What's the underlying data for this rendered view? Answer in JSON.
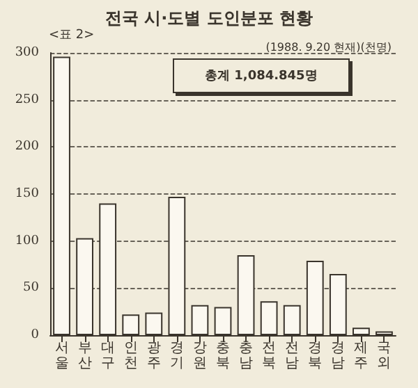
{
  "chart_data": {
    "type": "bar",
    "title": "전국 시·도별 도인분포 현황",
    "subtitle": "(1988. 9.20 현재)(천명)",
    "annotations": [
      "<표 2>",
      "총계 1,084.845명"
    ],
    "categories": [
      "서울",
      "부산",
      "대구",
      "인천",
      "광주",
      "경기",
      "강원",
      "충북",
      "충남",
      "전북",
      "전남",
      "경북",
      "경남",
      "제주",
      "국외"
    ],
    "values": [
      296,
      103,
      140,
      22,
      24,
      147,
      32,
      30,
      85,
      36,
      32,
      79,
      65,
      8,
      4
    ],
    "color": "#fbf8f0",
    "ylim": [
      0,
      300
    ],
    "yticks": [
      0,
      50,
      100,
      150,
      200,
      250,
      300
    ],
    "grid": "y"
  }
}
